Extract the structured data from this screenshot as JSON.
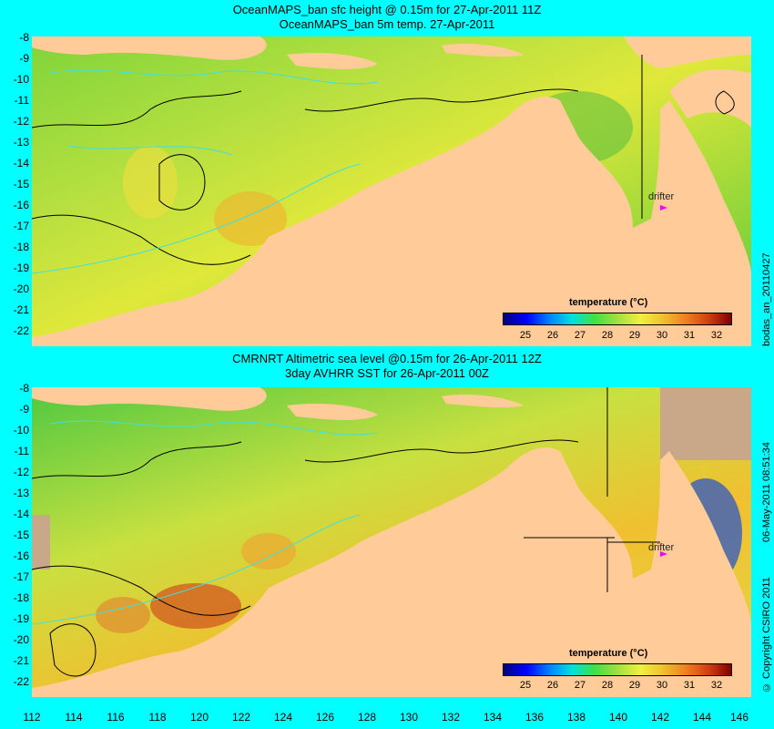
{
  "top_panel": {
    "title_line1": "OceanMAPS_ban sfc height @ 0.15m for 27-Apr-2011 11Z",
    "title_line2": "OceanMAPS_ban 5m temp. 27-Apr-2011",
    "side_label": "bodas_an_20110427",
    "colorbar_title": "temperature (°C)",
    "drifter_label": "drifter"
  },
  "bottom_panel": {
    "title_line1": "CMRNRT Altimetric sea level  @0.15m  for 26-Apr-2011 12Z",
    "title_line2": "3day AVHRR SST for 26-Apr-2011 00Z",
    "side_label": "06-May-2011 08:51:34",
    "copyright": "© Copyright CSIRO 2011",
    "colorbar_title": "temperature (°C)",
    "drifter_label": "drifter"
  },
  "y_ticks": [
    "-8",
    "-9",
    "-10",
    "-11",
    "-12",
    "-13",
    "-14",
    "-15",
    "-16",
    "-17",
    "-18",
    "-19",
    "-20",
    "-21",
    "-22"
  ],
  "x_ticks": [
    "112",
    "114",
    "116",
    "118",
    "120",
    "122",
    "124",
    "126",
    "128",
    "130",
    "132",
    "134",
    "136",
    "138",
    "140",
    "142",
    "144",
    "146"
  ],
  "colorbar_ticks": [
    "25",
    "26",
    "27",
    "28",
    "29",
    "30",
    "31",
    "32"
  ],
  "colors": {
    "background": "#00ffff",
    "land": "#ffcc99",
    "no_data": "#c8a888",
    "drifter": "#ff00ff"
  }
}
